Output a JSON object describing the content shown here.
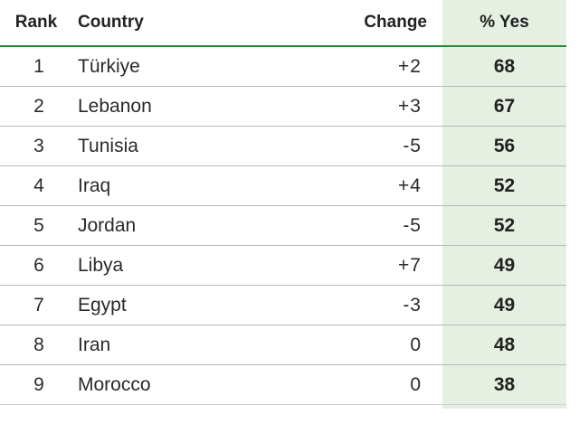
{
  "table": {
    "headers": {
      "rank": "Rank",
      "country": "Country",
      "change": "Change",
      "yes": "% Yes"
    },
    "rows": [
      {
        "rank": "1",
        "country": "Türkiye",
        "change": "+2",
        "yes": "68"
      },
      {
        "rank": "2",
        "country": "Lebanon",
        "change": "+3",
        "yes": "67"
      },
      {
        "rank": "3",
        "country": "Tunisia",
        "change": "-5",
        "yes": "56"
      },
      {
        "rank": "4",
        "country": "Iraq",
        "change": "+4",
        "yes": "52"
      },
      {
        "rank": "5",
        "country": "Jordan",
        "change": "-5",
        "yes": "52"
      },
      {
        "rank": "6",
        "country": "Libya",
        "change": "+7",
        "yes": "49"
      },
      {
        "rank": "7",
        "country": "Egypt",
        "change": "-3",
        "yes": "49"
      },
      {
        "rank": "8",
        "country": "Iran",
        "change": "0",
        "yes": "48"
      },
      {
        "rank": "9",
        "country": "Morocco",
        "change": "0",
        "yes": "38"
      }
    ]
  },
  "colors": {
    "header_rule": "#2e8a3a",
    "highlight_column": "#e6f0e2",
    "row_divider": "#b9b9b9"
  }
}
